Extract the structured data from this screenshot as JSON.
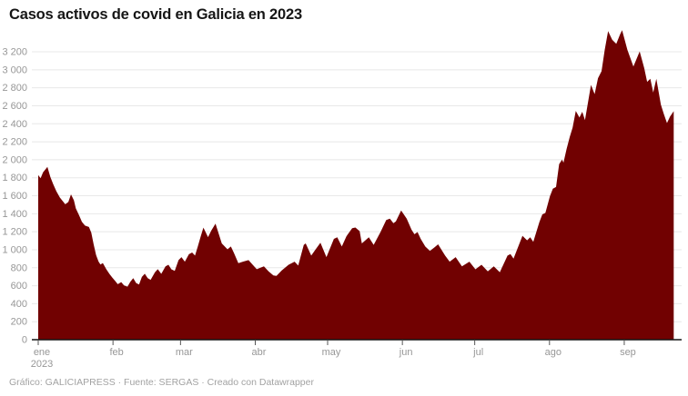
{
  "title": "Casos activos de covid en Galicia en 2023",
  "footer": {
    "text": "Gráfico: GALICIAPRESS · Fuente: SERGAS · Creado con Datawrapper"
  },
  "colors": {
    "area_fill": "#710101",
    "axis_line": "#141414",
    "gridline": "#e8e8e8",
    "tick_mark": "#555555",
    "axis_label": "#979797",
    "title_text": "#161616",
    "footer_text": "#a2a2a2",
    "background": "#ffffff"
  },
  "chart_data": {
    "type": "area",
    "title": "Casos activos de covid en Galicia en 2023",
    "xlabel": "",
    "ylabel": "",
    "legend": "none",
    "grid": "horizontal",
    "ylim": [
      0,
      3200
    ],
    "y_axis": {
      "tick_step": 200,
      "tick_values": [
        0,
        200,
        400,
        600,
        800,
        1000,
        1200,
        1400,
        1600,
        1800,
        2000,
        2200,
        2400,
        2600,
        2800,
        3000,
        3200
      ],
      "tick_labels": [
        "0",
        "200",
        "400",
        "600",
        "800",
        "1 000",
        "1 200",
        "1 400",
        "1 600",
        "1 800",
        "2 000",
        "2 200",
        "2 400",
        "2 600",
        "2 800",
        "3 000",
        "3 200"
      ]
    },
    "x_axis": {
      "unit": "día del año 2023 (ene 1 = 0)",
      "range_days": [
        0,
        263.5
      ],
      "months": [
        {
          "label": "ene",
          "sub": "2023",
          "day": 0
        },
        {
          "label": "feb",
          "day": 31
        },
        {
          "label": "mar",
          "day": 59
        },
        {
          "label": "abr",
          "day": 90
        },
        {
          "label": "may",
          "day": 120
        },
        {
          "label": "jun",
          "day": 151
        },
        {
          "label": "jul",
          "day": 181
        },
        {
          "label": "ago",
          "day": 212
        },
        {
          "label": "sep",
          "day": 243
        }
      ]
    },
    "series_name": "Casos activos de covid",
    "points": [
      [
        0,
        1830
      ],
      [
        1,
        1795
      ],
      [
        2,
        1860
      ],
      [
        3.8,
        1920
      ],
      [
        5,
        1810
      ],
      [
        6.2,
        1730
      ],
      [
        7.5,
        1650
      ],
      [
        9,
        1580
      ],
      [
        10,
        1545
      ],
      [
        11.2,
        1505
      ],
      [
        12.5,
        1530
      ],
      [
        13.6,
        1615
      ],
      [
        14.8,
        1550
      ],
      [
        15.6,
        1460
      ],
      [
        17,
        1380
      ],
      [
        18.1,
        1310
      ],
      [
        19.4,
        1268
      ],
      [
        21,
        1253
      ],
      [
        22,
        1190
      ],
      [
        23,
        1060
      ],
      [
        24,
        940
      ],
      [
        25,
        868
      ],
      [
        25.8,
        835
      ],
      [
        26.8,
        852
      ],
      [
        28.2,
        785
      ],
      [
        29.5,
        732
      ],
      [
        30.7,
        690
      ],
      [
        32,
        650
      ],
      [
        33,
        617
      ],
      [
        34.4,
        640
      ],
      [
        35.6,
        603
      ],
      [
        37,
        590
      ],
      [
        38.2,
        643
      ],
      [
        39.4,
        683
      ],
      [
        40.6,
        630
      ],
      [
        41.8,
        614
      ],
      [
        43,
        698
      ],
      [
        44.2,
        733
      ],
      [
        45.4,
        684
      ],
      [
        46.6,
        665
      ],
      [
        48.4,
        749
      ],
      [
        49.6,
        783
      ],
      [
        51,
        732
      ],
      [
        52.8,
        815
      ],
      [
        54,
        833
      ],
      [
        55.2,
        782
      ],
      [
        56.6,
        765
      ],
      [
        58.2,
        884
      ],
      [
        59.4,
        918
      ],
      [
        60.8,
        867
      ],
      [
        62.5,
        950
      ],
      [
        63.8,
        969
      ],
      [
        65,
        935
      ],
      [
        66.2,
        1038
      ],
      [
        67.3,
        1140
      ],
      [
        68.5,
        1246
      ],
      [
        70.4,
        1140
      ],
      [
        71.8,
        1215
      ],
      [
        73.5,
        1290
      ],
      [
        76.1,
        1070
      ],
      [
        78.5,
        1004
      ],
      [
        79.9,
        1036
      ],
      [
        81.1,
        968
      ],
      [
        83,
        850
      ],
      [
        85,
        868
      ],
      [
        87.2,
        884
      ],
      [
        89,
        830
      ],
      [
        90.6,
        783
      ],
      [
        93.6,
        816
      ],
      [
        95.5,
        760
      ],
      [
        97.5,
        715
      ],
      [
        98.8,
        710
      ],
      [
        101,
        770
      ],
      [
        103.8,
        833
      ],
      [
        106.3,
        867
      ],
      [
        107.8,
        824
      ],
      [
        110.1,
        1054
      ],
      [
        110.9,
        1070
      ],
      [
        113.2,
        935
      ],
      [
        115.2,
        1010
      ],
      [
        117,
        1077
      ],
      [
        119.5,
        918
      ],
      [
        122.6,
        1121
      ],
      [
        124,
        1138
      ],
      [
        125.9,
        1036
      ],
      [
        127.8,
        1150
      ],
      [
        130.2,
        1240
      ],
      [
        131.5,
        1247
      ],
      [
        133.3,
        1206
      ],
      [
        134.2,
        1070
      ],
      [
        137.1,
        1138
      ],
      [
        139.1,
        1054
      ],
      [
        142,
        1200
      ],
      [
        144.3,
        1330
      ],
      [
        145.8,
        1345
      ],
      [
        147.3,
        1295
      ],
      [
        148.3,
        1315
      ],
      [
        150.5,
        1435
      ],
      [
        152.8,
        1345
      ],
      [
        154.8,
        1222
      ],
      [
        156,
        1172
      ],
      [
        157.3,
        1196
      ],
      [
        158.6,
        1121
      ],
      [
        160.5,
        1036
      ],
      [
        162.4,
        986
      ],
      [
        164.3,
        1026
      ],
      [
        165.8,
        1060
      ],
      [
        168.7,
        935
      ],
      [
        170.6,
        867
      ],
      [
        173.1,
        918
      ],
      [
        175.7,
        816
      ],
      [
        178.8,
        867
      ],
      [
        181.3,
        782
      ],
      [
        183.8,
        833
      ],
      [
        186.4,
        759
      ],
      [
        188.9,
        816
      ],
      [
        191.4,
        749
      ],
      [
        194.6,
        935
      ],
      [
        195.8,
        952
      ],
      [
        197.1,
        901
      ],
      [
        200.8,
        1155
      ],
      [
        202.7,
        1104
      ],
      [
        204,
        1138
      ],
      [
        205.3,
        1087
      ],
      [
        207.8,
        1307
      ],
      [
        209,
        1392
      ],
      [
        210.3,
        1409
      ],
      [
        212.2,
        1595
      ],
      [
        213.4,
        1679
      ],
      [
        214.7,
        1697
      ],
      [
        216,
        1951
      ],
      [
        217.2,
        2002
      ],
      [
        217.8,
        1968
      ],
      [
        219.1,
        2120
      ],
      [
        220.4,
        2255
      ],
      [
        221.6,
        2357
      ],
      [
        222.9,
        2543
      ],
      [
        224.4,
        2469
      ],
      [
        225.6,
        2533
      ],
      [
        226.7,
        2441
      ],
      [
        229.2,
        2832
      ],
      [
        230.7,
        2730
      ],
      [
        232.1,
        2906
      ],
      [
        233.6,
        2984
      ],
      [
        234.9,
        3221
      ],
      [
        236.3,
        3429
      ],
      [
        238,
        3333
      ],
      [
        239.7,
        3289
      ],
      [
        241.3,
        3395
      ],
      [
        242.1,
        3440
      ],
      [
        244.3,
        3221
      ],
      [
        246.8,
        3035
      ],
      [
        249.4,
        3204
      ],
      [
        251.3,
        3018
      ],
      [
        252.5,
        2866
      ],
      [
        253.8,
        2899
      ],
      [
        255,
        2747
      ],
      [
        256.3,
        2899
      ],
      [
        258.2,
        2611
      ],
      [
        259.4,
        2510
      ],
      [
        260.7,
        2408
      ],
      [
        262,
        2480
      ],
      [
        263.5,
        2540
      ]
    ]
  }
}
